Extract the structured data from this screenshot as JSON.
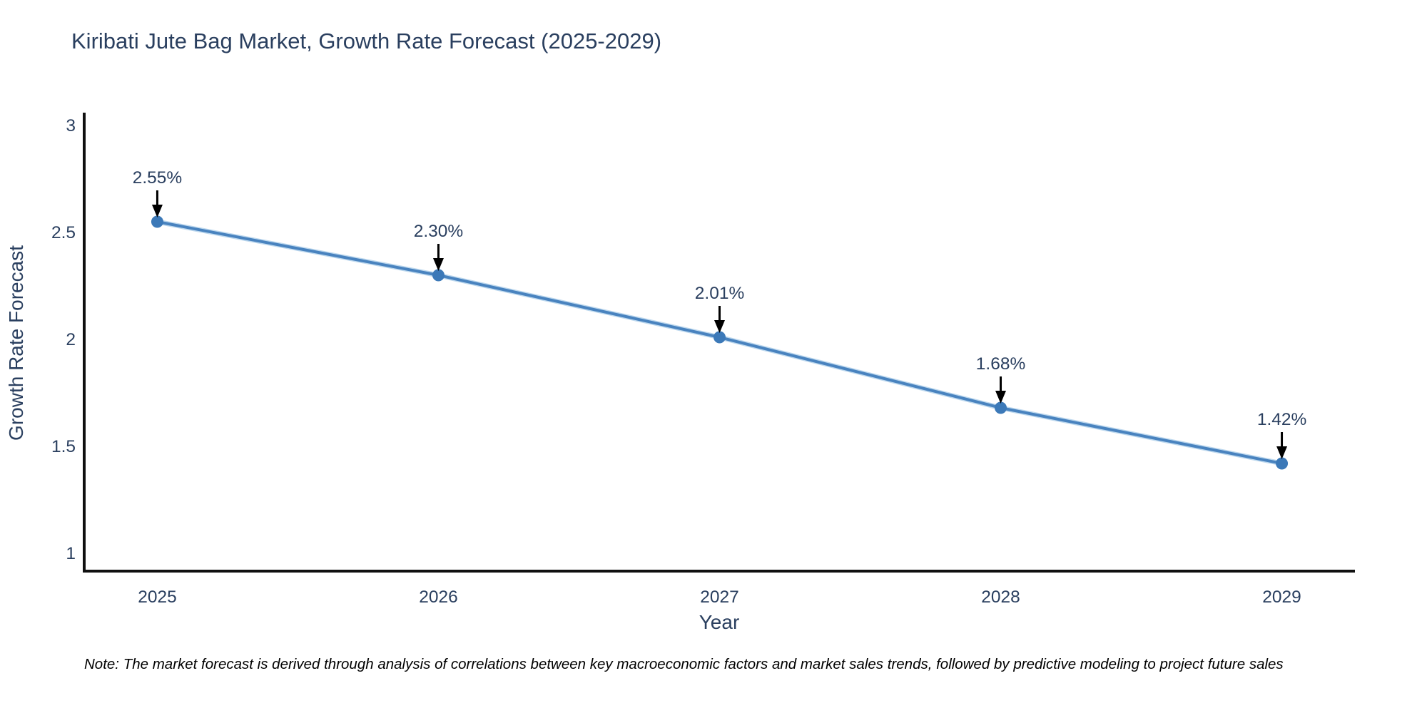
{
  "page": {
    "background": "#ffffff"
  },
  "chart_data": {
    "type": "line",
    "title": "Kiribati Jute Bag Market, Growth Rate Forecast (2025-2029)",
    "xlabel": "Year",
    "ylabel": "Growth Rate Forecast",
    "categories": [
      "2025",
      "2026",
      "2027",
      "2028",
      "2029"
    ],
    "x": [
      2025,
      2026,
      2027,
      2028,
      2029
    ],
    "series": [
      {
        "name": "Growth Rate Forecast",
        "values": [
          2.55,
          2.3,
          2.01,
          1.68,
          1.42
        ]
      }
    ],
    "annotations": [
      "2.55%",
      "2.30%",
      "2.01%",
      "1.68%",
      "1.42%"
    ],
    "yticks": [
      1,
      1.5,
      2,
      2.5,
      3
    ],
    "ytick_labels": [
      "1",
      "1.5",
      "2",
      "2.5",
      "3"
    ],
    "ylim": [
      0.91,
      3.06
    ],
    "xlim": [
      2024.74,
      2029.26
    ],
    "grid": false,
    "legend_position": "none",
    "colors": {
      "line": "#4983bf",
      "line_halo": "#bdd8ee",
      "marker": "#3c79b8",
      "axis": "#101010",
      "text": "#2a3f5f",
      "annotation_text": "#2a3f5f",
      "annotation_arrow": "#000000"
    }
  },
  "footnote": {
    "text": "Note: The market forecast is derived through analysis of correlations between key macroeconomic factors and market sales trends, followed by predictive modeling to project future sales"
  }
}
